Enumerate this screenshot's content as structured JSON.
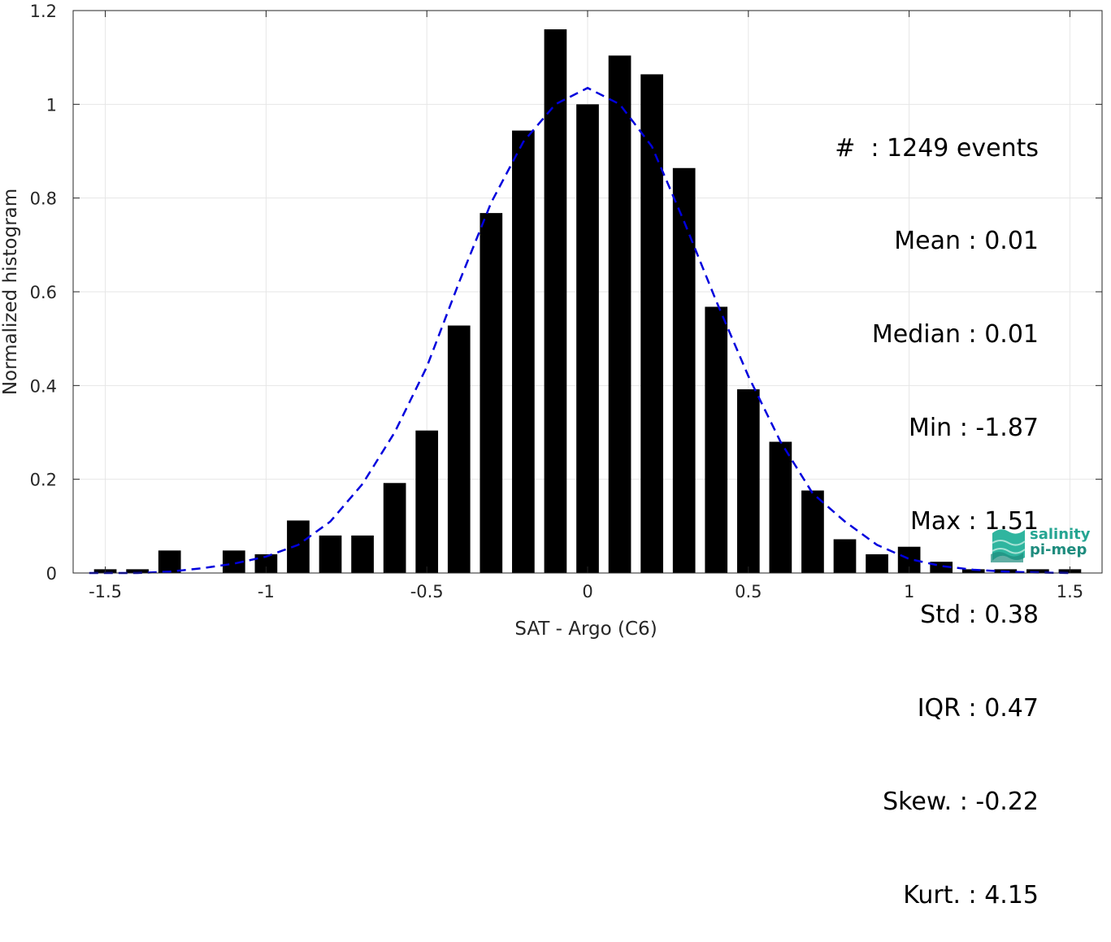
{
  "chart_data": {
    "type": "bar",
    "xlabel": "SAT - Argo (C6)",
    "ylabel": "Normalized histogram",
    "xlim": [
      -1.6,
      1.6
    ],
    "ylim": [
      0,
      1.2
    ],
    "xticks": [
      -1.5,
      -1,
      -0.5,
      0,
      0.5,
      1,
      1.5
    ],
    "yticks": [
      0,
      0.2,
      0.4,
      0.6,
      0.8,
      1,
      1.2
    ],
    "xtick_labels": [
      "-1.5",
      "-1",
      "-0.5",
      "0",
      "0.5",
      "1",
      "1.5"
    ],
    "ytick_labels": [
      "0",
      "0.2",
      "0.4",
      "0.6",
      "0.8",
      "1",
      "1.2"
    ],
    "grid": true,
    "bar_color": "#000000",
    "bars": {
      "centers": [
        -1.5,
        -1.4,
        -1.3,
        -1.2,
        -1.1,
        -1.0,
        -0.9,
        -0.8,
        -0.7,
        -0.6,
        -0.5,
        -0.4,
        -0.3,
        -0.2,
        -0.1,
        0.0,
        0.1,
        0.2,
        0.3,
        0.4,
        0.5,
        0.6,
        0.7,
        0.8,
        0.9,
        1.0,
        1.1,
        1.2,
        1.3,
        1.4,
        1.5
      ],
      "values": [
        0.008,
        0.008,
        0.048,
        0,
        0.048,
        0.04,
        0.112,
        0.08,
        0.08,
        0.192,
        0.304,
        0.528,
        0.768,
        0.944,
        1.16,
        1.0,
        1.104,
        1.064,
        0.864,
        0.568,
        0.392,
        0.28,
        0.176,
        0.072,
        0.04,
        0.056,
        0.024,
        0.008,
        0.008,
        0.008,
        0.008
      ],
      "width": 0.07
    },
    "fit_curve": {
      "style": "dashed",
      "color": "#0000dd",
      "x": [
        -1.55,
        -1.5,
        -1.4,
        -1.3,
        -1.2,
        -1.1,
        -1.0,
        -0.9,
        -0.8,
        -0.7,
        -0.6,
        -0.5,
        -0.4,
        -0.3,
        -0.2,
        -0.1,
        0.0,
        0.1,
        0.2,
        0.3,
        0.4,
        0.5,
        0.6,
        0.7,
        0.8,
        0.9,
        1.0,
        1.1,
        1.2,
        1.3,
        1.4,
        1.5
      ],
      "y": [
        0.0,
        0.0,
        0.0,
        0.003,
        0.01,
        0.02,
        0.035,
        0.06,
        0.11,
        0.19,
        0.3,
        0.44,
        0.62,
        0.79,
        0.92,
        1.0,
        1.035,
        1.0,
        0.91,
        0.75,
        0.58,
        0.42,
        0.28,
        0.17,
        0.11,
        0.06,
        0.03,
        0.015,
        0.007,
        0.003,
        0.001,
        0.0
      ]
    },
    "stats": [
      "#  : 1249 events",
      "Mean : 0.01",
      "Median : 0.01",
      "Min : -1.87",
      "Max : 1.51",
      "Std : 0.38",
      "IQR : 0.47",
      "Skew. : -0.22",
      "Kurt. : 4.15"
    ]
  },
  "logo": {
    "line1": "salinity",
    "line2": "pi-mep"
  },
  "colors": {
    "axis": "#262626",
    "grid": "#e6e6e6",
    "fit": "#0000dd",
    "logo": "#25a592"
  }
}
